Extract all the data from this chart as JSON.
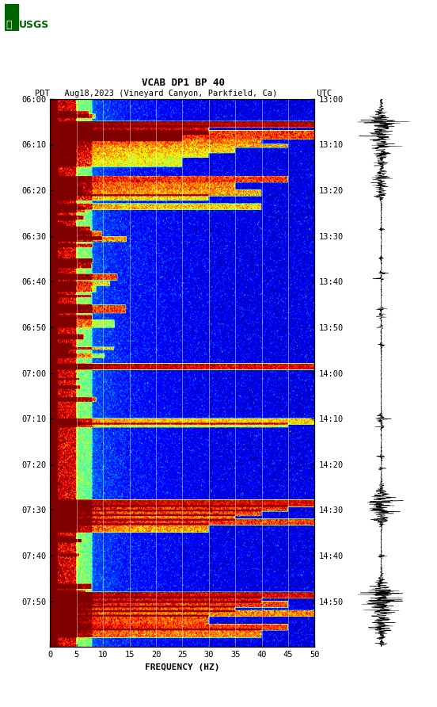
{
  "title_line1": "VCAB DP1 BP 40",
  "title_line2": "PDT   Aug18,2023 (Vineyard Canyon, Parkfield, Ca)        UTC",
  "xlabel": "FREQUENCY (HZ)",
  "freq_min": 0,
  "freq_max": 50,
  "ytick_pdt": [
    "06:00",
    "06:10",
    "06:20",
    "06:30",
    "06:40",
    "06:50",
    "07:00",
    "07:10",
    "07:20",
    "07:30",
    "07:40",
    "07:50"
  ],
  "ytick_utc": [
    "13:00",
    "13:10",
    "13:20",
    "13:30",
    "13:40",
    "13:50",
    "14:00",
    "14:10",
    "14:20",
    "14:30",
    "14:40",
    "14:50"
  ],
  "xticks": [
    0,
    5,
    10,
    15,
    20,
    25,
    30,
    35,
    40,
    45,
    50
  ],
  "fig_width": 5.52,
  "fig_height": 8.92,
  "usgs_color": "#006400",
  "grid_color": "#888888",
  "waveform_color": "#000000"
}
